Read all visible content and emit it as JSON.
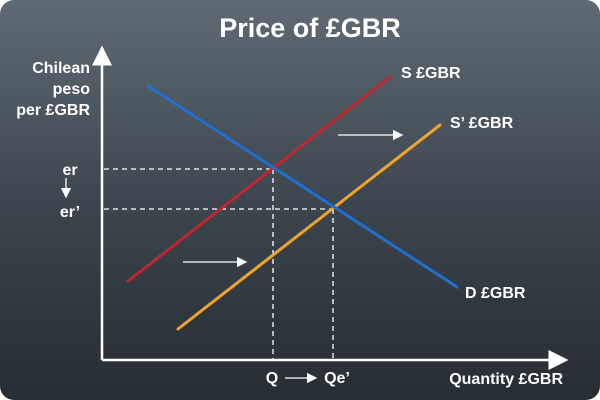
{
  "diagram": {
    "title": "Price of £GBR",
    "y_axis_label": [
      "Chilean",
      "peso",
      "per £GBR"
    ],
    "x_axis_label": "Quantity £GBR",
    "price_labels": {
      "initial": "er",
      "new": "er’"
    },
    "quantity_labels": {
      "initial": "Q",
      "new": "Qe’"
    },
    "curves": {
      "supply": {
        "label": "S  £GBR",
        "color": "#c0262f"
      },
      "supply_shifted": {
        "label": "S’  £GBR",
        "color": "#f0a32a"
      },
      "demand": {
        "label": "D  £GBR",
        "color": "#1f6fd0"
      }
    }
  }
}
